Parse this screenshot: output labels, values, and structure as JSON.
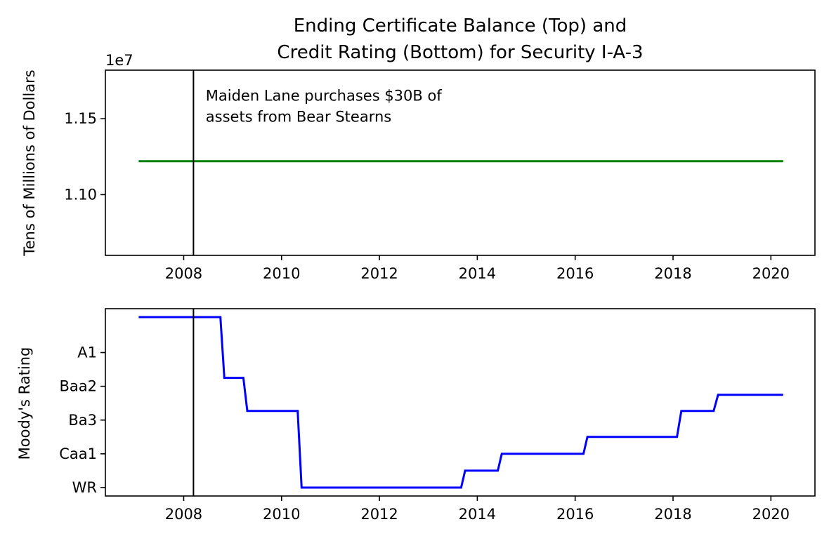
{
  "title_line1": "Ending Certificate Balance (Top) and",
  "title_line2": "Credit Rating (Bottom) for Security I-A-3",
  "chart_data": [
    {
      "type": "line",
      "ylabel": "Tens of Millions of Dollars",
      "offset_text": "1e7",
      "xlim": [
        2006.4,
        2020.9
      ],
      "ylim": [
        10.6,
        11.82
      ],
      "x_ticks": [
        2008,
        2010,
        2012,
        2014,
        2016,
        2018,
        2020
      ],
      "y_ticks": [
        11.0,
        11.5
      ],
      "y_tick_labels": [
        "1.10",
        "1.15"
      ],
      "series": [
        {
          "color": "#008000",
          "points": [
            [
              2007.08,
              11.22
            ],
            [
              2020.25,
              11.22
            ]
          ]
        }
      ],
      "event_line_x": 2008.2,
      "annotation_lines": [
        "Maiden Lane purchases $30B of",
        "assets from Bear Stearns"
      ],
      "annotation_x": 2008.45,
      "annotation_y": 11.62
    },
    {
      "type": "line",
      "ylabel": "Moody's Rating",
      "xlim": [
        2006.4,
        2020.9
      ],
      "ylim": [
        -0.25,
        5.3
      ],
      "x_ticks": [
        2008,
        2010,
        2012,
        2014,
        2016,
        2018,
        2020
      ],
      "y_ticks": [
        0,
        1,
        2,
        3,
        4
      ],
      "y_tick_labels": [
        "WR",
        "Caa1",
        "Ba3",
        "Baa2",
        "A1"
      ],
      "series": [
        {
          "color": "#0000ff",
          "points": [
            [
              2007.08,
              5.05
            ],
            [
              2008.75,
              5.05
            ],
            [
              2008.83,
              3.25
            ],
            [
              2009.22,
              3.25
            ],
            [
              2009.3,
              2.27
            ],
            [
              2010.33,
              2.27
            ],
            [
              2010.41,
              0.0
            ],
            [
              2013.67,
              0.0
            ],
            [
              2013.75,
              0.5
            ],
            [
              2014.42,
              0.5
            ],
            [
              2014.5,
              1.0
            ],
            [
              2016.17,
              1.0
            ],
            [
              2016.25,
              1.5
            ],
            [
              2018.08,
              1.5
            ],
            [
              2018.17,
              2.27
            ],
            [
              2018.83,
              2.27
            ],
            [
              2018.92,
              2.75
            ],
            [
              2020.25,
              2.75
            ]
          ]
        }
      ],
      "event_line_x": 2008.2
    }
  ]
}
